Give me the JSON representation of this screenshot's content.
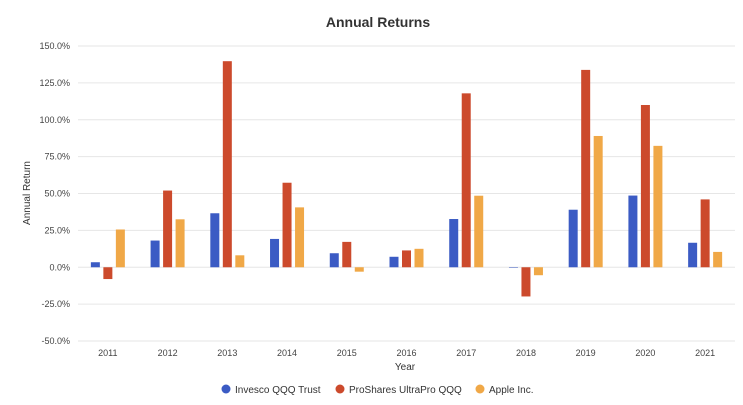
{
  "chart_data": {
    "type": "bar",
    "title": "Annual Returns",
    "xlabel": "Year",
    "ylabel": "Annual Return",
    "categories": [
      "2011",
      "2012",
      "2013",
      "2014",
      "2015",
      "2016",
      "2017",
      "2018",
      "2019",
      "2020",
      "2021"
    ],
    "ylim": [
      -50,
      150
    ],
    "yticks": [
      -50,
      -25,
      0,
      25,
      50,
      75,
      100,
      125,
      150
    ],
    "ytick_labels": [
      "-50.0%",
      "-25.0%",
      "0.0%",
      "25.0%",
      "50.0%",
      "75.0%",
      "100.0%",
      "125.0%",
      "150.0%"
    ],
    "grid": true,
    "legend_position": "bottom",
    "series": [
      {
        "name": "Invesco QQQ Trust",
        "color": "#3b5bc4",
        "values": [
          3.4,
          18.1,
          36.6,
          19.2,
          9.5,
          7.1,
          32.7,
          -0.1,
          39.0,
          48.6,
          16.6
        ]
      },
      {
        "name": "ProShares UltraPro QQQ",
        "color": "#cc4a2c",
        "values": [
          -8.0,
          52.0,
          139.7,
          57.3,
          17.2,
          11.4,
          117.9,
          -19.8,
          133.8,
          110.0,
          46.0
        ]
      },
      {
        "name": "Apple Inc.",
        "color": "#f0a847",
        "values": [
          25.6,
          32.5,
          8.1,
          40.6,
          -3.0,
          12.5,
          48.5,
          -5.4,
          89.0,
          82.3,
          10.4
        ]
      }
    ]
  }
}
